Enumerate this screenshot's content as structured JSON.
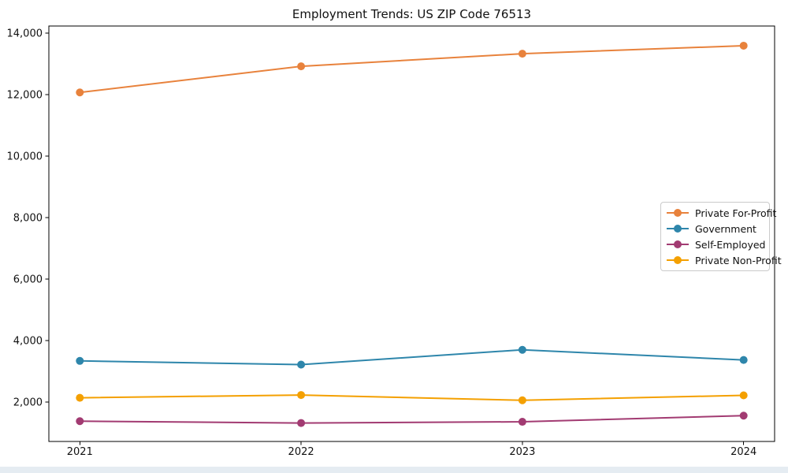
{
  "chart_data": {
    "type": "line",
    "title": "Employment Trends: US ZIP Code 76513",
    "x": [
      2021,
      2022,
      2023,
      2024
    ],
    "x_tick_labels": [
      "2021",
      "2022",
      "2023",
      "2024"
    ],
    "series": [
      {
        "name": "Private For-Profit",
        "color": "#E8823C",
        "values": [
          12070,
          12920,
          13330,
          13590
        ]
      },
      {
        "name": "Government",
        "color": "#2E86AB",
        "values": [
          3340,
          3220,
          3700,
          3370
        ]
      },
      {
        "name": "Self-Employed",
        "color": "#A23B72",
        "values": [
          1380,
          1320,
          1360,
          1560
        ]
      },
      {
        "name": "Private Non-Profit",
        "color": "#F4A001",
        "values": [
          2140,
          2230,
          2060,
          2220
        ]
      }
    ],
    "xlim": [
      2020.86,
      2024.14
    ],
    "ylim": [
      720,
      14230
    ],
    "yticks": [
      2000,
      4000,
      6000,
      8000,
      10000,
      12000,
      14000
    ],
    "ytick_labels": [
      "2,000",
      "4,000",
      "6,000",
      "8,000",
      "10,000",
      "12,000",
      "14,000"
    ],
    "grid": false,
    "marker": "circle",
    "legend_position": "center right"
  },
  "figure": {
    "background": "#ffffff",
    "spine_color": "#000000",
    "tick_label_color": "#111111",
    "legend_border_color": "#cbcbcb",
    "bottom_strip_color": "#e5ecf2"
  }
}
